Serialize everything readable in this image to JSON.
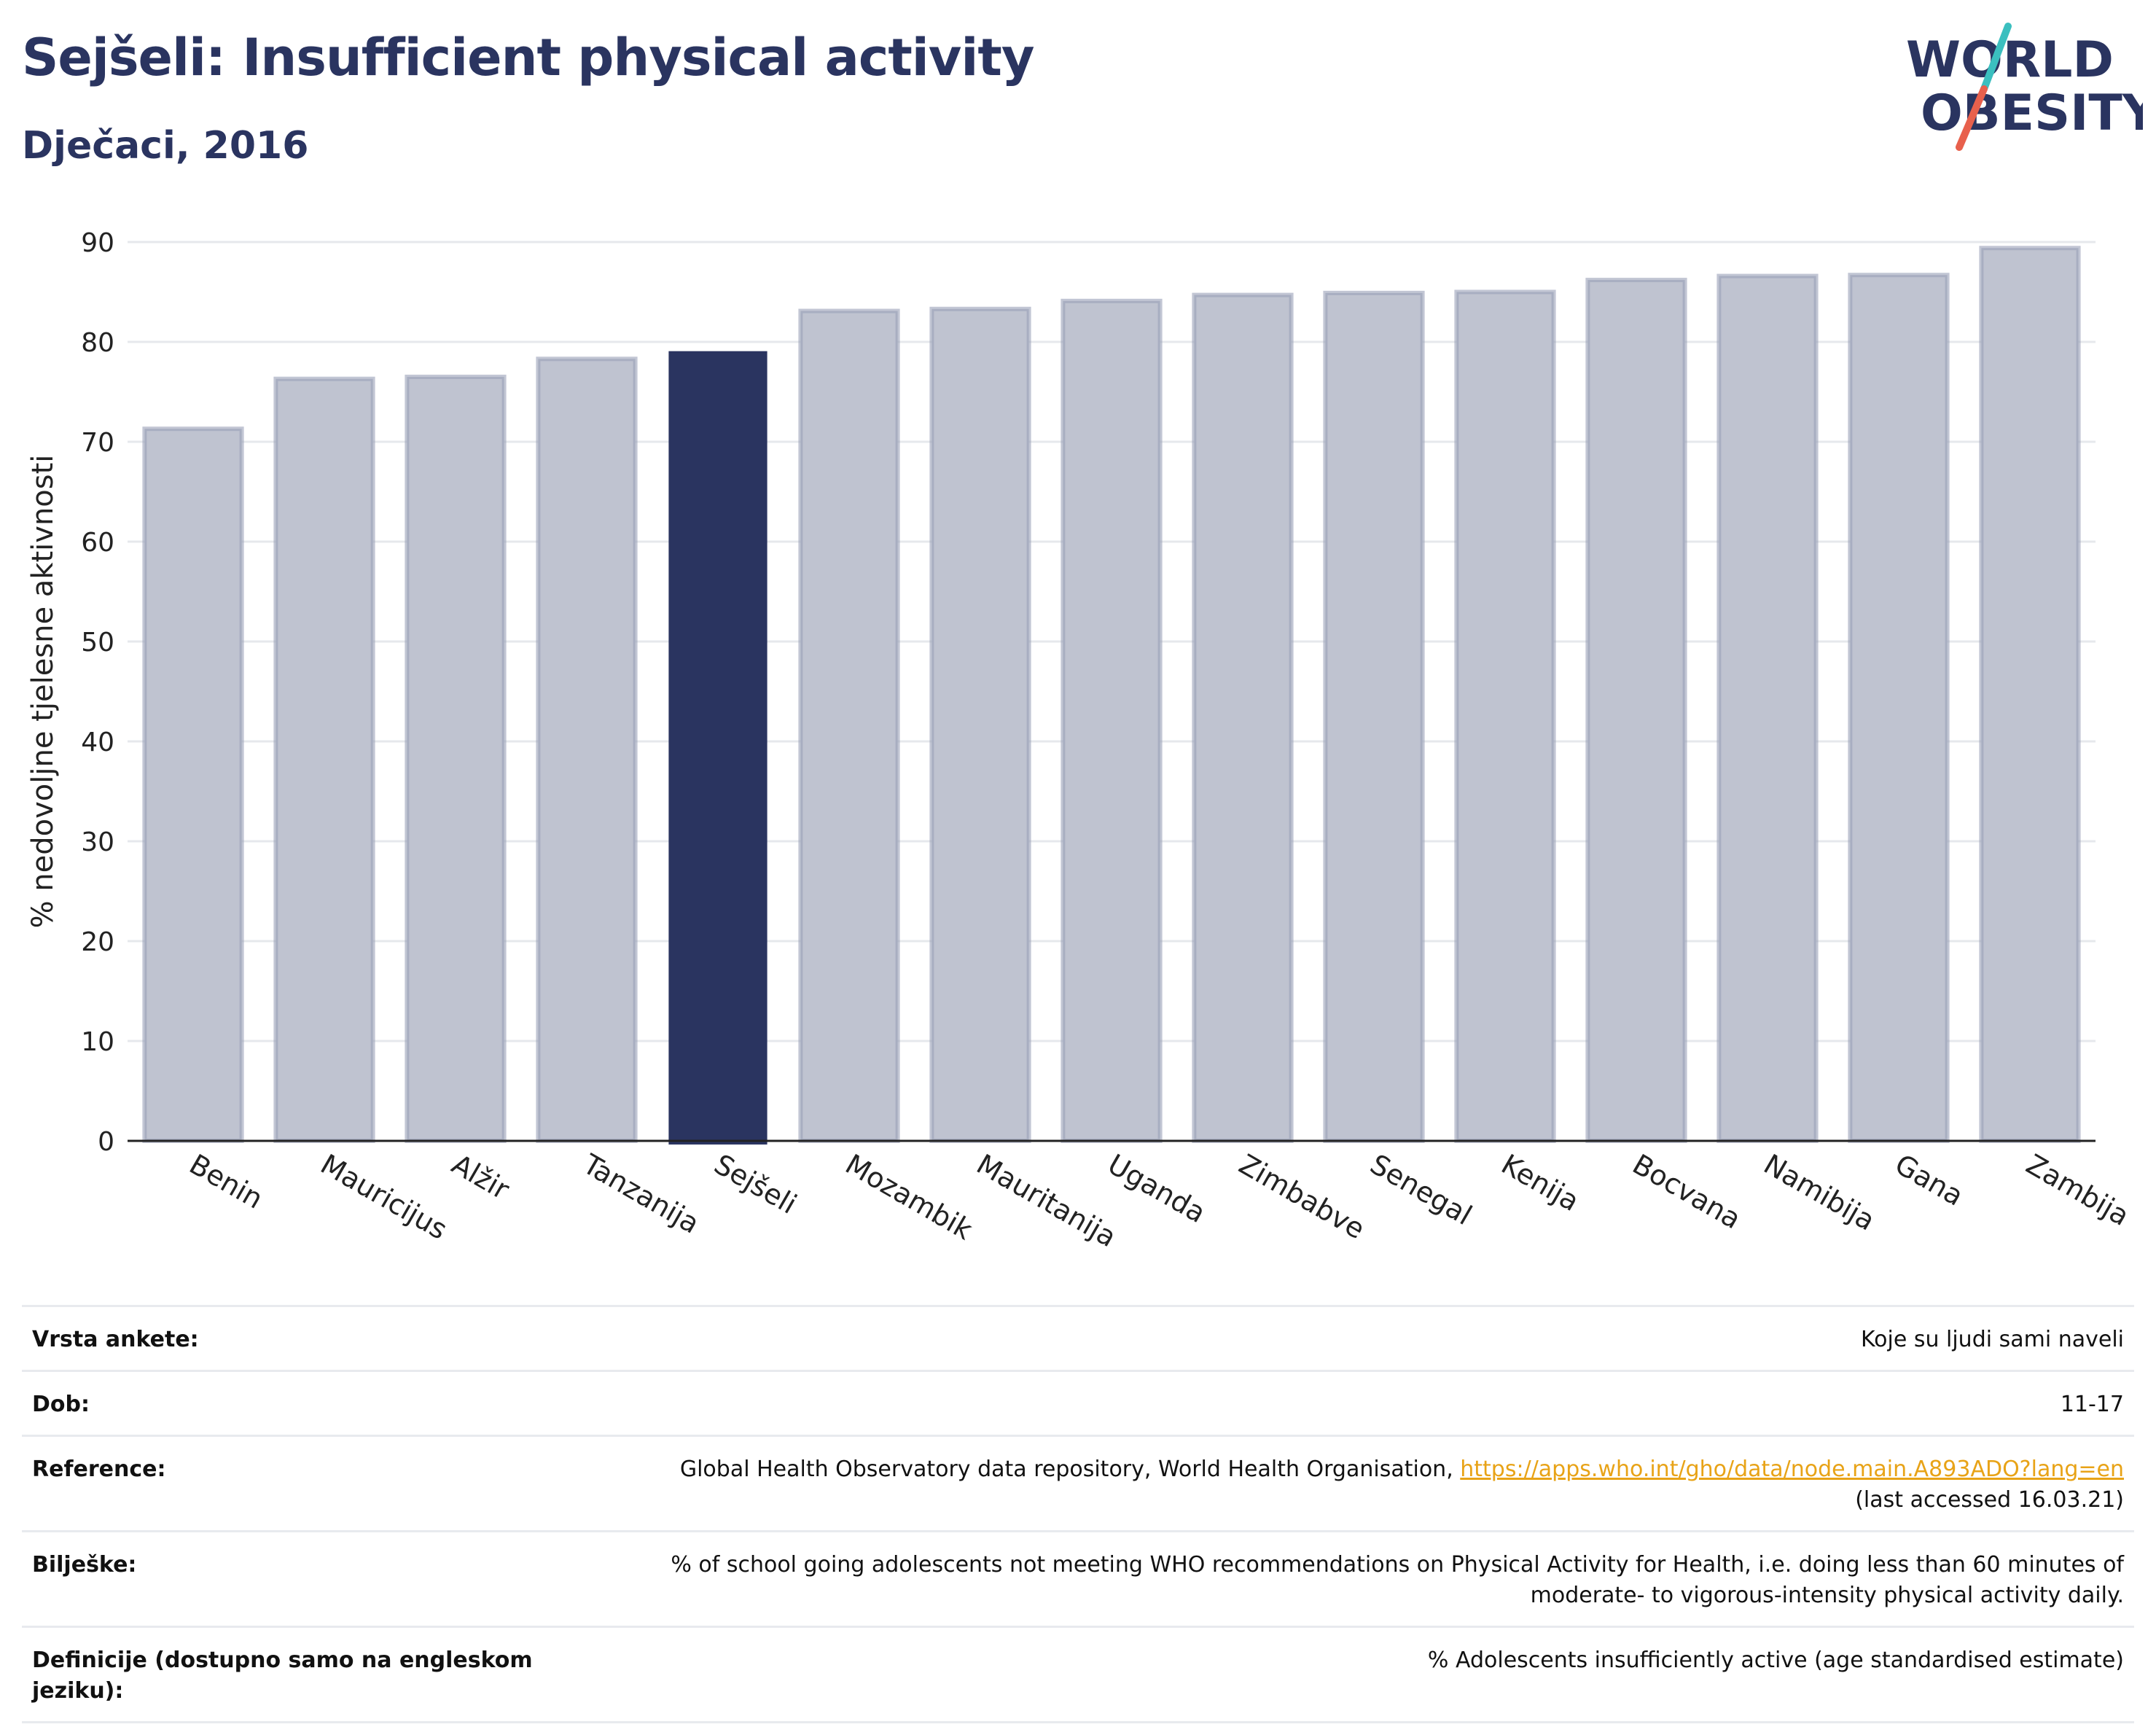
{
  "header": {
    "title": "Sejšeli: Insufficient physical activity",
    "subtitle": "Dječaci, 2016"
  },
  "logo": {
    "line1": "WORLD",
    "line2": "OBESITY",
    "colors": {
      "text": "#2a3460",
      "slash_top": "#3bbfbf",
      "slash_bottom": "#e8604c"
    }
  },
  "chart_data": {
    "type": "bar",
    "title": "",
    "xlabel": "",
    "ylabel": "% nedovoljne tjelesne aktivnosti",
    "ylim": [
      0,
      90
    ],
    "yticks": [
      0,
      10,
      20,
      30,
      40,
      50,
      60,
      70,
      80,
      90
    ],
    "grid": true,
    "categories": [
      "Benin",
      "Mauricijus",
      "Alžir",
      "Tanzanija",
      "Sejšeli",
      "Mozambik",
      "Mauritanija",
      "Uganda",
      "Zimbabve",
      "Senegal",
      "Kenija",
      "Bocvana",
      "Namibija",
      "Gana",
      "Zambija"
    ],
    "values": [
      71.3,
      76.3,
      76.5,
      78.3,
      79.0,
      83.1,
      83.3,
      84.1,
      84.7,
      84.9,
      85.0,
      86.2,
      86.6,
      86.7,
      89.4
    ],
    "highlight": "Sejšeli",
    "colors": {
      "bar": "#bfc3d0",
      "bar_edge": "#9aa0b8",
      "highlight": "#2a3460"
    }
  },
  "metadata": [
    {
      "label": "Vrsta ankete:",
      "value": "Koje su ljudi sami naveli"
    },
    {
      "label": "Dob:",
      "value": "11-17"
    },
    {
      "label": "Reference:",
      "value_prefix": "Global Health Observatory data repository, World Health Organisation, ",
      "link": "https://apps.who.int/gho/data/node.main.A893ADO?lang=en",
      "value_suffix": "(last accessed 16.03.21)"
    },
    {
      "label": "Bilješke:",
      "value": "% of school going adolescents not meeting WHO recommendations on Physical Activity for Health, i.e. doing less than 60 minutes of moderate- to vigorous-intensity physical activity daily."
    },
    {
      "label": "Definicije (dostupno samo na engleskom jeziku):",
      "value": "% Adolescents insufficiently active (age standardised estimate)"
    }
  ]
}
